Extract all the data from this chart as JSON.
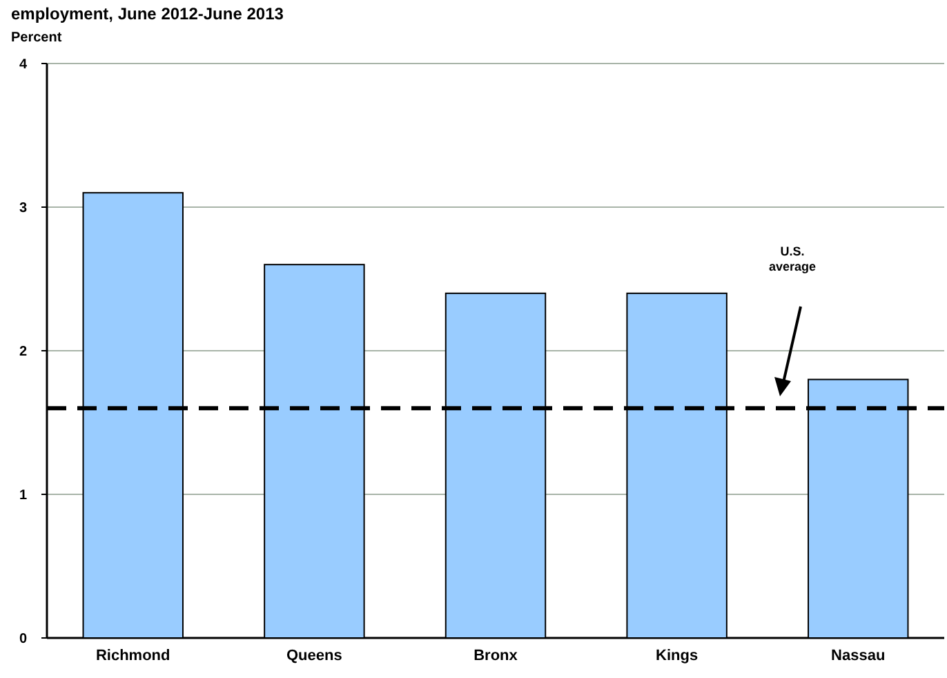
{
  "chart_data": {
    "type": "bar",
    "title": "employment, June 2012-June 2013",
    "ylabel": "Percent",
    "categories": [
      "Richmond",
      "Queens",
      "Bronx",
      "Kings",
      "Nassau"
    ],
    "values": [
      3.1,
      2.6,
      2.4,
      2.4,
      1.8
    ],
    "color": "#99ccff",
    "ylim": [
      0,
      4
    ],
    "yticks": [
      0,
      1,
      2,
      3,
      4
    ],
    "grid": "y",
    "ref_lines": [
      {
        "axis": "y",
        "value": 1.6,
        "label": "U.S. average",
        "color": "#000000",
        "line_style": "dashed"
      }
    ]
  }
}
